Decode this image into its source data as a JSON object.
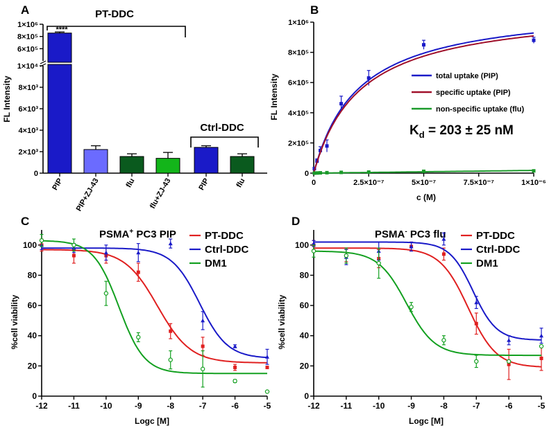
{
  "colors": {
    "blue": "#1a1ac8",
    "lightblue": "#6b6bff",
    "darkgreen": "#0a5a1e",
    "green": "#13b51a",
    "red": "#e02020",
    "maroon": "#a0102a",
    "legendgreen": "#1a9a2a"
  },
  "chart_data": [
    {
      "panel": "A",
      "type": "bar",
      "title": "PT-DDC",
      "subgroup_label": "Ctrl-DDC",
      "ylabel": "FL Intensity",
      "significance": "****",
      "categories": [
        "PIP",
        "PIP+ZJ-43",
        "flu",
        "flu+ZJ-43",
        "PIP",
        "flu"
      ],
      "values": [
        880000,
        2200,
        1550,
        1380,
        2400,
        1550
      ],
      "errors": [
        15000,
        350,
        250,
        550,
        150,
        250
      ],
      "colors": [
        "#1a1ac8",
        "#6b6bff",
        "#0a5a1e",
        "#13b51a",
        "#1a1ac8",
        "#0a5a1e"
      ],
      "y_break": {
        "lower_max": 10000,
        "upper_min": 500000,
        "upper_max": 1000000
      },
      "yticks_lower": [
        "0",
        "2×10³",
        "4×10³",
        "6×10³",
        "8×10³",
        "1×10⁴"
      ],
      "yticks_upper": [
        "6×10⁵",
        "8×10⁵",
        "1×10⁶"
      ]
    },
    {
      "panel": "B",
      "type": "scatter",
      "xlabel": "c (M)",
      "ylabel": "FL Intensity",
      "annotation_main": "K",
      "annotation_sub": "d",
      "annotation_rest": " = 203 ± 25 nM",
      "xlim": [
        0,
        1e-06
      ],
      "ylim": [
        0,
        1000000
      ],
      "xticks": [
        "0",
        "2.5×10⁻⁷",
        "5×10⁻⁷",
        "7.5×10⁻⁷",
        "1×10⁻⁶"
      ],
      "yticks": [
        "0",
        "2×10⁵",
        "4×10⁵",
        "6×10⁵",
        "8×10⁵",
        "1×10⁶"
      ],
      "series": [
        {
          "name": "total uptake (PIP)",
          "color": "#1a1ac8",
          "fit": {
            "bmax": 1117000,
            "kd": 2.03e-07
          },
          "x": [
            3e-09,
            1.5e-08,
            3e-08,
            6e-08,
            1.25e-07,
            2.5e-07,
            5e-07,
            1e-06
          ],
          "y": [
            30000,
            80000,
            150000,
            180000,
            460000,
            630000,
            850000,
            880000
          ],
          "err": [
            8000,
            15000,
            25000,
            40000,
            50000,
            50000,
            30000,
            20000
          ]
        },
        {
          "name": "specific uptake (PIP)",
          "color": "#a0102a",
          "fit": {
            "bmax": 1100000,
            "kd": 2.1e-07
          },
          "x": [],
          "y": []
        },
        {
          "name": "non-specific uptake (flu)",
          "color": "#1a9a2a",
          "fit": {
            "slope": 18000000000
          },
          "x": [
            3e-09,
            1.5e-08,
            3e-08,
            6e-08,
            1.25e-07,
            2.5e-07,
            5e-07,
            1e-06
          ],
          "y": [
            0,
            1000,
            2000,
            3000,
            5000,
            7000,
            12000,
            15000
          ]
        }
      ]
    },
    {
      "panel": "C",
      "type": "line",
      "title_main": "PSMA",
      "title_sup": "+",
      "title_rest": " PC3 PIP",
      "xlabel": "Logc [M]",
      "ylabel": "%cell viability",
      "xlim": [
        -12,
        -5
      ],
      "ylim": [
        0,
        110
      ],
      "xticks": [
        "-12",
        "-11",
        "-10",
        "-9",
        "-8",
        "-7",
        "-6",
        "-5"
      ],
      "yticks": [
        "0",
        "20",
        "40",
        "60",
        "80",
        "100"
      ],
      "series": [
        {
          "name": "PT-DDC",
          "color": "#e02020",
          "marker": "square",
          "fit": {
            "top": 97,
            "bottom": 22,
            "ec50": -8.4,
            "hill": 0.85
          },
          "x": [
            -12,
            -11,
            -10,
            -9,
            -8,
            -7,
            -6,
            -5
          ],
          "y": [
            100,
            93,
            93,
            82,
            43,
            33,
            19,
            19
          ],
          "err": [
            4,
            5,
            5,
            6,
            5,
            6,
            2,
            0
          ]
        },
        {
          "name": "Ctrl-DDC",
          "color": "#1a1ac8",
          "marker": "triangle",
          "fit": {
            "top": 98,
            "bottom": 25,
            "ec50": -7.1,
            "hill": 1.0
          },
          "x": [
            -12,
            -11,
            -10,
            -9,
            -8,
            -7,
            -6,
            -5
          ],
          "y": [
            100,
            98,
            95,
            95,
            101,
            50,
            33,
            26
          ],
          "err": [
            3,
            3,
            5,
            6,
            3,
            6,
            1,
            5
          ]
        },
        {
          "name": "DM1",
          "color": "#13a020",
          "marker": "circle",
          "fit": {
            "top": 103,
            "bottom": 15,
            "ec50": -9.6,
            "hill": 1.1
          },
          "x": [
            -12,
            -11,
            -10,
            -9,
            -8,
            -7,
            -6,
            -5
          ],
          "y": [
            103,
            100,
            68,
            39,
            24,
            18,
            10,
            3
          ],
          "err": [
            4,
            4,
            8,
            3,
            6,
            12,
            1,
            0
          ]
        }
      ]
    },
    {
      "panel": "D",
      "type": "line",
      "title_main": "PSMA",
      "title_sup": "-",
      "title_rest": " PC3 flu",
      "xlabel": "Logc [M]",
      "ylabel": "%cell viability",
      "xlim": [
        -12,
        -5
      ],
      "ylim": [
        0,
        110
      ],
      "xticks": [
        "-12",
        "-11",
        "-10",
        "-9",
        "-8",
        "-7",
        "-6",
        "-5"
      ],
      "yticks": [
        "0",
        "20",
        "40",
        "60",
        "80",
        "100"
      ],
      "series": [
        {
          "name": "PT-DDC",
          "color": "#e02020",
          "marker": "square",
          "fit": {
            "top": 98,
            "bottom": 19,
            "ec50": -7.25,
            "hill": 1.0
          },
          "x": [
            -12,
            -11,
            -10,
            -9,
            -8,
            -7,
            -6,
            -5
          ],
          "y": [
            100,
            93,
            91,
            99,
            94,
            48,
            21,
            25
          ],
          "err": [
            3,
            4,
            6,
            3,
            4,
            7,
            10,
            8
          ]
        },
        {
          "name": "Ctrl-DDC",
          "color": "#1a1ac8",
          "marker": "triangle",
          "fit": {
            "top": 102,
            "bottom": 37,
            "ec50": -7.1,
            "hill": 1.2
          },
          "x": [
            -12,
            -11,
            -10,
            -9,
            -8,
            -7,
            -6,
            -5
          ],
          "y": [
            101,
            92,
            96,
            99,
            104,
            62,
            37,
            40
          ],
          "err": [
            2,
            5,
            6,
            3,
            4,
            4,
            3,
            5
          ]
        },
        {
          "name": "DM1",
          "color": "#13a020",
          "marker": "circle",
          "fit": {
            "top": 96,
            "bottom": 27,
            "ec50": -9.15,
            "hill": 1.0
          },
          "x": [
            -12,
            -11,
            -10,
            -9,
            -8,
            -7,
            -6,
            -5
          ],
          "y": [
            96,
            93,
            88,
            59,
            37,
            23,
            23,
            33
          ],
          "err": [
            4,
            5,
            10,
            3,
            3,
            4,
            0,
            0
          ]
        }
      ]
    }
  ],
  "labels": {
    "A": "A",
    "B": "B",
    "C": "C",
    "D": "D"
  }
}
